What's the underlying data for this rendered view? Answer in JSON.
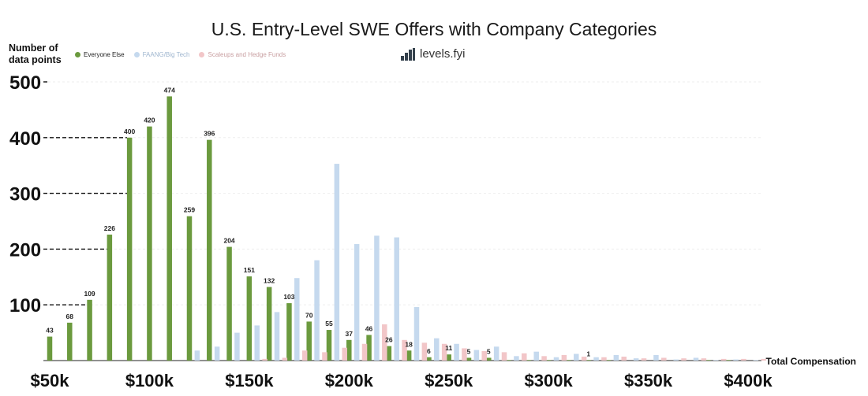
{
  "chart_data": {
    "type": "bar",
    "title": "U.S. Entry-Level SWE Offers with Company Categories",
    "ylabel_lines": [
      "Number of",
      "data points"
    ],
    "xlabel": "Total Compensation",
    "brand": "levels.fyi",
    "ylim": [
      0,
      500
    ],
    "y_ticks": [
      100,
      200,
      300,
      400,
      500
    ],
    "y_tick_labels": [
      "100",
      "200",
      "300",
      "400",
      "500"
    ],
    "x_ticks": [
      50,
      100,
      150,
      200,
      250,
      300,
      350,
      400
    ],
    "x_tick_labels": [
      "$50k",
      "$100k",
      "$150k",
      "$200k",
      "$250k",
      "$300k",
      "$350k",
      "$400k"
    ],
    "x_range": [
      50,
      400
    ],
    "categories": [
      50,
      60,
      70,
      80,
      90,
      100,
      110,
      120,
      130,
      140,
      150,
      160,
      170,
      180,
      190,
      200,
      210,
      220,
      230,
      240,
      250,
      260,
      270,
      280,
      290,
      300,
      310,
      320,
      330,
      340,
      350,
      360,
      370,
      380,
      390,
      400
    ],
    "series": [
      {
        "name": "Everyone Else",
        "color": "#6b9a3e",
        "values": [
          43,
          68,
          109,
          226,
          400,
          420,
          474,
          259,
          396,
          204,
          151,
          132,
          103,
          70,
          55,
          37,
          46,
          26,
          18,
          6,
          11,
          5,
          5,
          1,
          1,
          1,
          1,
          1,
          1,
          0,
          0,
          0,
          0,
          1,
          1,
          0
        ],
        "labels": [
          "43",
          "68",
          "109",
          "226",
          "400",
          "420",
          "474",
          "259",
          "396",
          "204",
          "151",
          "132",
          "103",
          "70",
          "55",
          "37",
          "46",
          "26",
          "18",
          "6",
          "11",
          "5",
          "5",
          "",
          "",
          "",
          "",
          "1",
          "",
          "",
          "",
          "",
          "",
          "",
          "",
          ""
        ]
      },
      {
        "name": "FAANG/Big Tech",
        "color": "#c5d9ee",
        "values": [
          0,
          0,
          0,
          0,
          0,
          0,
          0,
          18,
          25,
          50,
          63,
          87,
          148,
          180,
          353,
          209,
          224,
          221,
          96,
          40,
          30,
          19,
          25,
          8,
          16,
          6,
          12,
          6,
          10,
          4,
          10,
          2,
          5,
          1,
          2,
          1
        ]
      },
      {
        "name": "Scaleups and Hedge Funds",
        "color": "#f2c6c8",
        "values": [
          0,
          0,
          0,
          0,
          0,
          0,
          0,
          0,
          0,
          0,
          3,
          5,
          18,
          15,
          23,
          30,
          65,
          37,
          32,
          30,
          22,
          17,
          15,
          13,
          8,
          10,
          7,
          6,
          7,
          4,
          5,
          4,
          4,
          3,
          3,
          3
        ]
      }
    ],
    "reference_levels": [
      100,
      200,
      300,
      400,
      500
    ]
  }
}
